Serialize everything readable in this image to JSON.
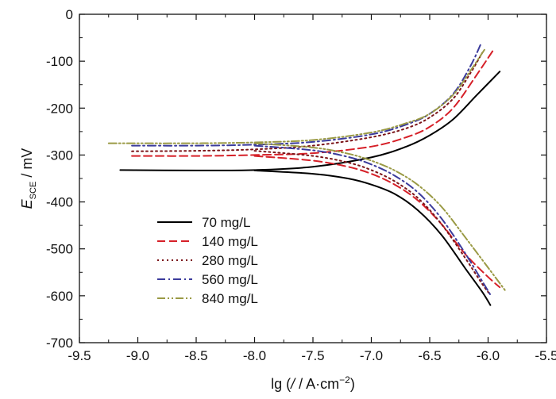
{
  "chart_data": {
    "type": "line",
    "title": "",
    "xlabel": "lg (/ / A·cm⁻²)",
    "xlabel_parts": {
      "main": "lg (",
      "italic": "/",
      "unit": " / A·cm",
      "exp": "−2",
      "close": ")"
    },
    "ylabel_parts": {
      "var": "E",
      "sub": "SCE",
      "unit": " / mV"
    },
    "xlim": [
      -9.5,
      -5.5
    ],
    "ylim": [
      -700,
      0
    ],
    "x_ticks": [
      -9.5,
      -9.0,
      -8.5,
      -8.0,
      -7.5,
      -7.0,
      -6.5,
      -6.0,
      -5.5
    ],
    "x_tick_labels": [
      "-9.5",
      "-9.0",
      "-8.5",
      "-8.0",
      "-7.5",
      "-7.0",
      "-6.5",
      "-6.0",
      "-5.5"
    ],
    "y_ticks": [
      0,
      -100,
      -200,
      -300,
      -400,
      -500,
      -600,
      -700
    ],
    "y_tick_labels": [
      "0",
      "-100",
      "-200",
      "-300",
      "-400",
      "-500",
      "-600",
      "-700"
    ],
    "grid": false,
    "legend_position": "bottom-left",
    "series": [
      {
        "name": "70 mg/L",
        "color": "#000000",
        "dash": "solid",
        "anodic": [
          [
            -9.15,
            -332
          ],
          [
            -8.5,
            -333
          ],
          [
            -8.0,
            -332
          ],
          [
            -7.5,
            -325
          ],
          [
            -7.0,
            -305
          ],
          [
            -6.7,
            -282
          ],
          [
            -6.5,
            -258
          ],
          [
            -6.3,
            -224
          ],
          [
            -6.1,
            -173
          ],
          [
            -5.9,
            -122
          ]
        ],
        "cathodic": [
          [
            -8.0,
            -333
          ],
          [
            -7.5,
            -340
          ],
          [
            -7.2,
            -350
          ],
          [
            -7.0,
            -363
          ],
          [
            -6.8,
            -383
          ],
          [
            -6.6,
            -418
          ],
          [
            -6.4,
            -470
          ],
          [
            -6.2,
            -540
          ],
          [
            -6.05,
            -592
          ],
          [
            -5.98,
            -620
          ]
        ]
      },
      {
        "name": "140 mg/L",
        "color": "#d62028",
        "dash": "dashed",
        "anodic": [
          [
            -9.05,
            -302
          ],
          [
            -8.5,
            -302
          ],
          [
            -8.0,
            -300
          ],
          [
            -7.5,
            -296
          ],
          [
            -7.0,
            -282
          ],
          [
            -6.7,
            -262
          ],
          [
            -6.5,
            -240
          ],
          [
            -6.3,
            -200
          ],
          [
            -6.1,
            -130
          ],
          [
            -5.96,
            -78
          ]
        ],
        "cathodic": [
          [
            -8.0,
            -302
          ],
          [
            -7.5,
            -312
          ],
          [
            -7.2,
            -325
          ],
          [
            -7.0,
            -340
          ],
          [
            -6.8,
            -363
          ],
          [
            -6.6,
            -397
          ],
          [
            -6.4,
            -447
          ],
          [
            -6.2,
            -510
          ],
          [
            -6.0,
            -560
          ],
          [
            -5.9,
            -582
          ]
        ]
      },
      {
        "name": "280 mg/L",
        "color": "#7b1418",
        "dash": "dotted",
        "anodic": [
          [
            -9.05,
            -292
          ],
          [
            -8.5,
            -291
          ],
          [
            -8.0,
            -288
          ],
          [
            -7.5,
            -280
          ],
          [
            -7.0,
            -262
          ],
          [
            -6.7,
            -243
          ],
          [
            -6.5,
            -220
          ],
          [
            -6.3,
            -180
          ],
          [
            -6.15,
            -125
          ],
          [
            -6.05,
            -82
          ]
        ],
        "cathodic": [
          [
            -8.0,
            -291
          ],
          [
            -7.5,
            -302
          ],
          [
            -7.2,
            -316
          ],
          [
            -7.0,
            -332
          ],
          [
            -6.8,
            -356
          ],
          [
            -6.6,
            -392
          ],
          [
            -6.4,
            -447
          ],
          [
            -6.2,
            -518
          ],
          [
            -6.05,
            -575
          ],
          [
            -5.98,
            -598
          ]
        ]
      },
      {
        "name": "560 mg/L",
        "color": "#3b3b9c",
        "dash": "dashdot",
        "anodic": [
          [
            -9.05,
            -280
          ],
          [
            -8.5,
            -280
          ],
          [
            -8.0,
            -278
          ],
          [
            -7.5,
            -272
          ],
          [
            -7.0,
            -256
          ],
          [
            -6.7,
            -235
          ],
          [
            -6.5,
            -212
          ],
          [
            -6.3,
            -170
          ],
          [
            -6.15,
            -110
          ],
          [
            -6.06,
            -62
          ]
        ],
        "cathodic": [
          [
            -8.0,
            -280
          ],
          [
            -7.5,
            -290
          ],
          [
            -7.2,
            -304
          ],
          [
            -7.0,
            -320
          ],
          [
            -6.8,
            -344
          ],
          [
            -6.6,
            -380
          ],
          [
            -6.4,
            -435
          ],
          [
            -6.2,
            -508
          ],
          [
            -6.06,
            -565
          ],
          [
            -5.98,
            -598
          ]
        ]
      },
      {
        "name": "840 mg/L",
        "color": "#9a9a45",
        "dash": "dashdotdot",
        "anodic": [
          [
            -9.25,
            -275
          ],
          [
            -8.5,
            -275
          ],
          [
            -8.0,
            -273
          ],
          [
            -7.5,
            -268
          ],
          [
            -7.0,
            -252
          ],
          [
            -6.7,
            -232
          ],
          [
            -6.5,
            -212
          ],
          [
            -6.3,
            -172
          ],
          [
            -6.15,
            -120
          ],
          [
            -6.03,
            -75
          ]
        ],
        "cathodic": [
          [
            -8.0,
            -275
          ],
          [
            -7.5,
            -284
          ],
          [
            -7.2,
            -297
          ],
          [
            -7.0,
            -312
          ],
          [
            -6.8,
            -333
          ],
          [
            -6.6,
            -364
          ],
          [
            -6.4,
            -410
          ],
          [
            -6.2,
            -474
          ],
          [
            -6.0,
            -540
          ],
          [
            -5.85,
            -590
          ]
        ]
      }
    ]
  }
}
